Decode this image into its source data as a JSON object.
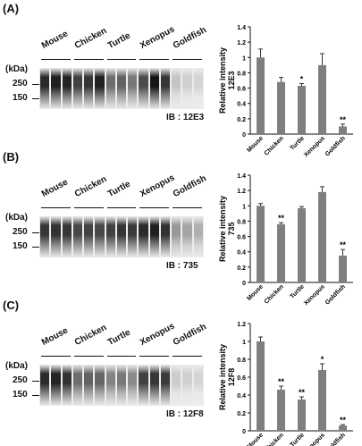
{
  "figure": {
    "species": [
      "Mouse",
      "Chicken",
      "Turtle",
      "Xenopus",
      "Goldfish"
    ],
    "kda_label": "(kDa)",
    "mw_markers": [
      "250",
      "150"
    ],
    "panels": [
      {
        "label": "(A)",
        "ib": "IB : 12E3",
        "lane_darkness": [
          0.85,
          0.9,
          0.88,
          0.75,
          0.8,
          0.9,
          0.55,
          0.6,
          0.5,
          0.7,
          0.95,
          0.8,
          0.15,
          0.1,
          0.08
        ]
      },
      {
        "label": "(B)",
        "ib": "IB : 735",
        "lane_darkness": [
          0.8,
          0.82,
          0.8,
          0.72,
          0.74,
          0.72,
          0.75,
          0.8,
          0.78,
          0.85,
          0.9,
          0.82,
          0.35,
          0.3,
          0.25
        ]
      },
      {
        "label": "(C)",
        "ib": "IB : 12F8",
        "lane_darkness": [
          0.85,
          0.88,
          0.82,
          0.55,
          0.6,
          0.58,
          0.45,
          0.5,
          0.42,
          0.75,
          0.8,
          0.78,
          0.12,
          0.1,
          0.08
        ]
      }
    ]
  },
  "chart_data": [
    {
      "type": "bar",
      "categories": [
        "Mouse",
        "Chicken",
        "Turtle",
        "Xenopus",
        "Goldfish"
      ],
      "values": [
        1.0,
        0.68,
        0.63,
        0.9,
        0.1
      ],
      "errors": [
        0.11,
        0.06,
        0.03,
        0.15,
        0.03
      ],
      "annotations": [
        "",
        "",
        "*",
        "",
        "**"
      ],
      "ylabel": "Relative intensity\n12E3",
      "ylim": [
        0,
        1.4
      ],
      "yticks": [
        "0",
        "0.2",
        "0.4",
        "0.6",
        "0.8",
        "1",
        "1.2",
        "1.4"
      ],
      "bar_color": "#7f7f7f"
    },
    {
      "type": "bar",
      "categories": [
        "Mouse",
        "Chicken",
        "Turtle",
        "Xenopus",
        "Goldfish"
      ],
      "values": [
        1.0,
        0.76,
        0.97,
        1.18,
        0.35
      ],
      "errors": [
        0.03,
        0.02,
        0.02,
        0.07,
        0.08
      ],
      "annotations": [
        "",
        "**",
        "",
        "",
        "**"
      ],
      "ylabel": "Relative intensity\n735",
      "ylim": [
        0,
        1.4
      ],
      "yticks": [
        "0",
        "0.2",
        "0.4",
        "0.6",
        "0.8",
        "1",
        "1.2",
        "1.4"
      ],
      "bar_color": "#7f7f7f"
    },
    {
      "type": "bar",
      "categories": [
        "Mouse",
        "Chicken",
        "Turtle",
        "Xenopus",
        "Goldfish"
      ],
      "values": [
        1.0,
        0.46,
        0.35,
        0.68,
        0.06
      ],
      "errors": [
        0.05,
        0.04,
        0.03,
        0.07,
        0.01
      ],
      "annotations": [
        "",
        "**",
        "**",
        "*",
        "**"
      ],
      "ylabel": "Relative intensity\n12F8",
      "ylim": [
        0,
        1.2
      ],
      "yticks": [
        "0",
        "0.2",
        "0.4",
        "0.6",
        "0.8",
        "1",
        "1.2"
      ],
      "bar_color": "#7f7f7f"
    }
  ]
}
